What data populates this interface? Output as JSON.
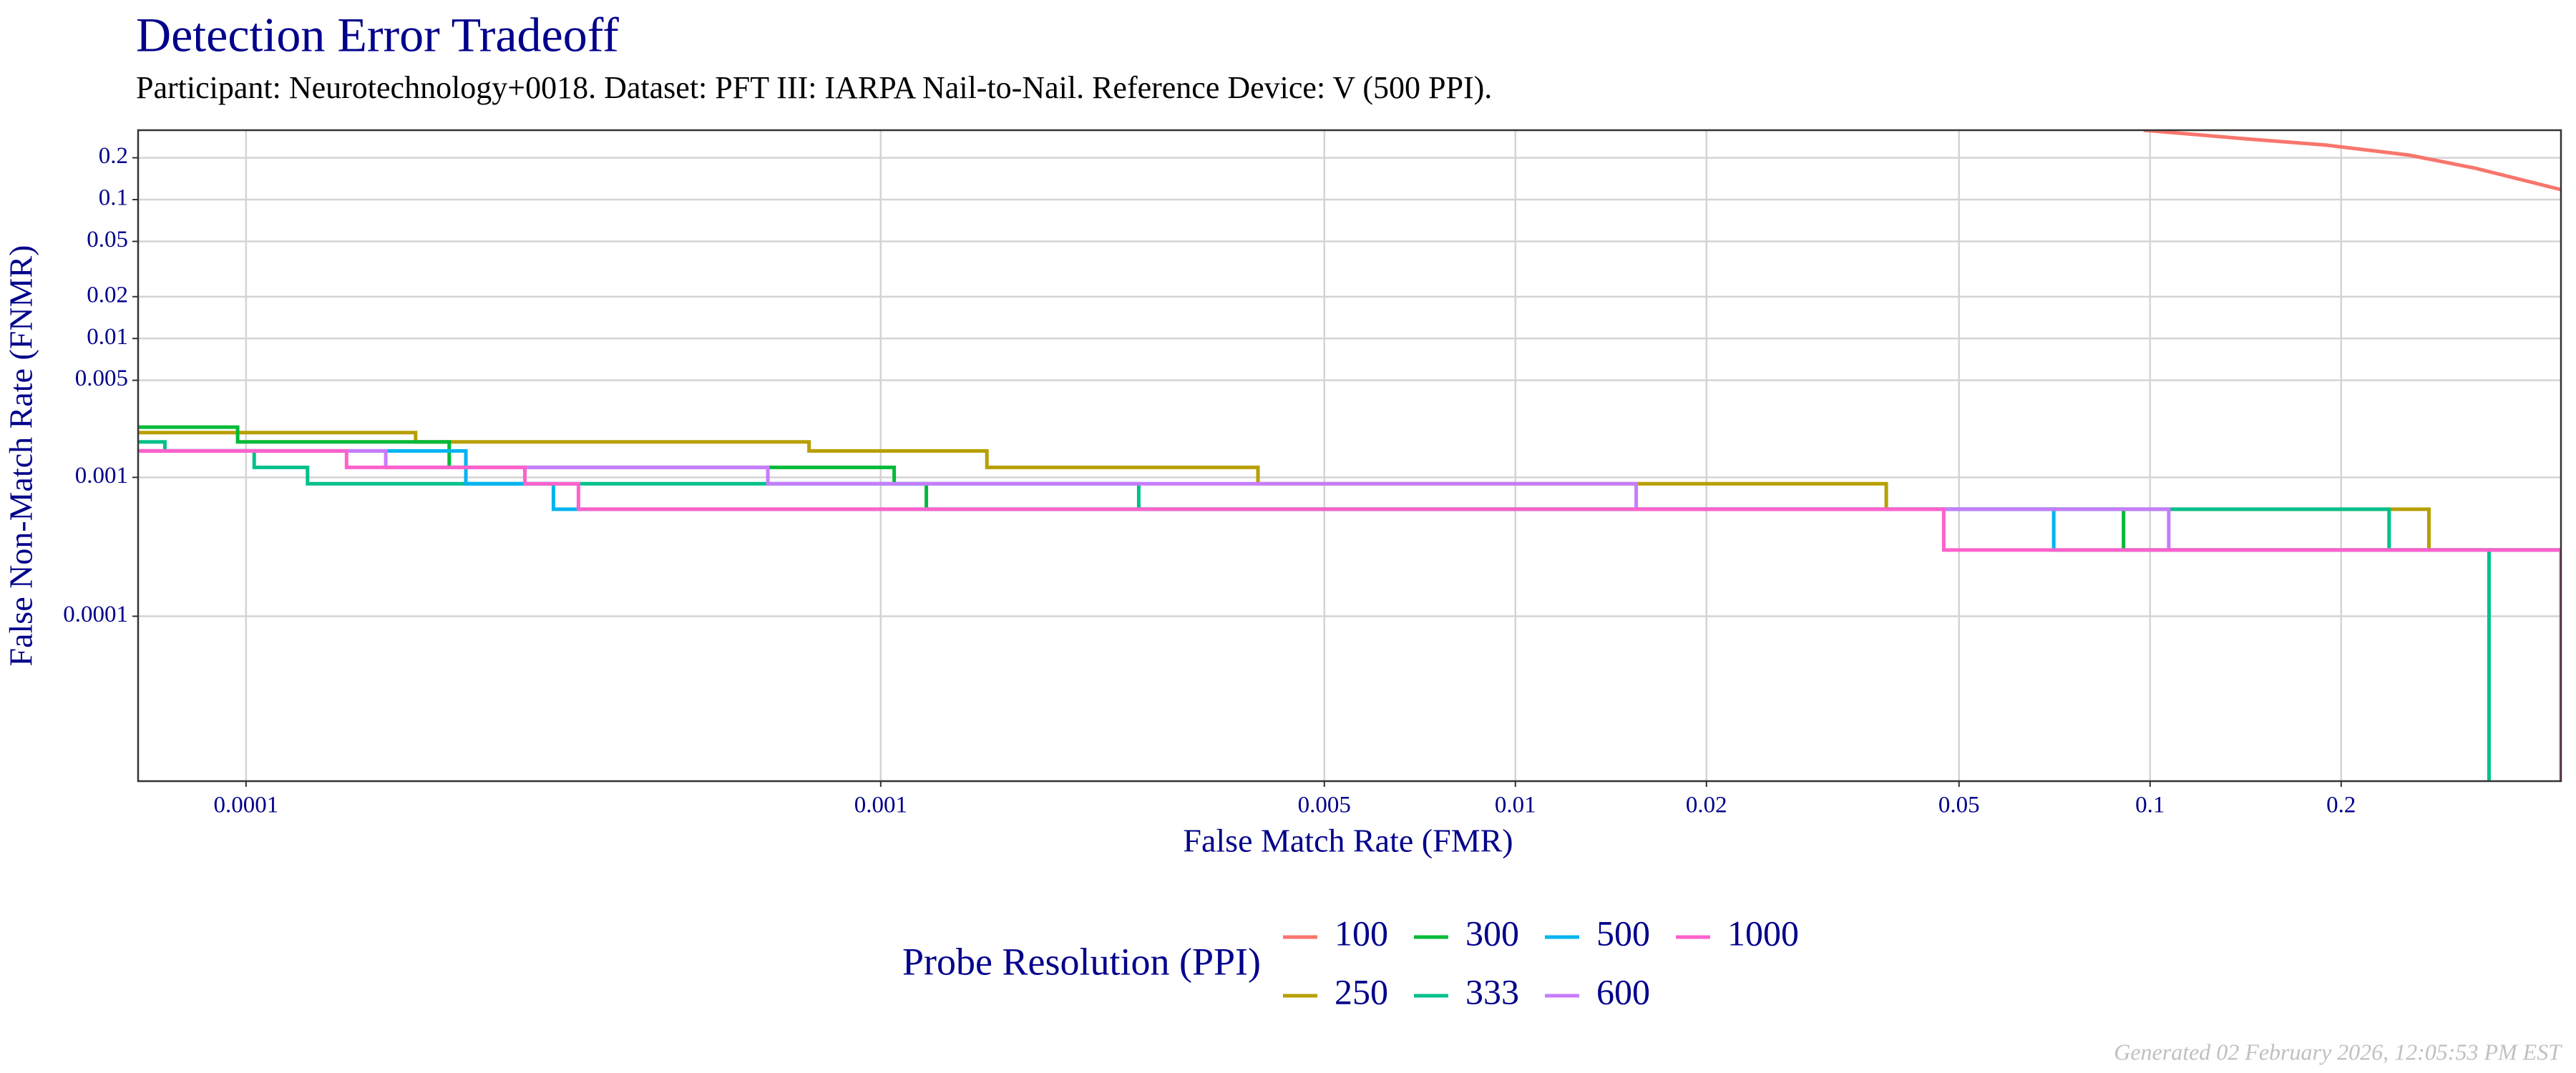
{
  "chart_data": {
    "type": "line",
    "step": true,
    "title": "Detection Error Tradeoff",
    "subtitle": "Participant: Neurotechnology+0018. Dataset: PFT III: IARPA Nail-to-Nail. Reference Device: V (500 PPI).",
    "xlabel": "False Match Rate (FMR)",
    "ylabel": "False Non-Match Rate (FNMR)",
    "xscale": "log",
    "yscale": "log",
    "grid": true,
    "xlim": [
      6.76e-05,
      0.444
    ],
    "ylim": [
      6.5e-06,
      0.316
    ],
    "xticks": [
      0.0001,
      0.001,
      0.005,
      0.01,
      0.02,
      0.05,
      0.1,
      0.2
    ],
    "yticks": [
      0.2,
      0.1,
      0.05,
      0.02,
      0.01,
      0.005,
      0.001,
      0.0001
    ],
    "legend_title": "Probe Resolution (PPI)",
    "legend_position": "bottom",
    "footer": "Generated 02 February 2026, 12:05:53 PM EST",
    "series": [
      {
        "name": "100",
        "color": "#F8766D",
        "step": false,
        "x": [
          0.0977,
          0.14,
          0.189,
          0.256,
          0.326,
          0.444
        ],
        "values": [
          0.316,
          0.275,
          0.247,
          0.209,
          0.168,
          0.118
        ]
      },
      {
        "name": "250",
        "color": "#B79F00",
        "x": [
          6.76e-05,
          0.000185,
          0.000771,
          0.00147,
          0.00393,
          0.0384,
          0.275,
          0.444
        ],
        "values": [
          0.0021,
          0.0018,
          0.00155,
          0.00118,
          0.0009,
          0.00059,
          0.0003,
          0.0003
        ]
      },
      {
        "name": "300",
        "color": "#00BA38",
        "x": [
          6.76e-05,
          9.7e-05,
          0.000209,
          0.00105,
          0.00118,
          0.0908,
          0.444
        ],
        "values": [
          0.0023,
          0.0018,
          0.00118,
          0.0009,
          0.00059,
          0.0003,
          0.0003
        ]
      },
      {
        "name": "333",
        "color": "#00C08B",
        "x": [
          6.76e-05,
          7.45e-05,
          0.000103,
          0.000125,
          0.00255,
          0.238,
          0.342
        ],
        "values": [
          0.0018,
          0.00155,
          0.00118,
          0.0009,
          0.00059,
          0.0003,
          6.5e-06
        ]
      },
      {
        "name": "500",
        "color": "#00B4F0",
        "x": [
          6.76e-05,
          0.000222,
          0.000305,
          0.0705,
          0.444
        ],
        "values": [
          0.00155,
          0.0009,
          0.00059,
          0.0003,
          0.0003
        ]
      },
      {
        "name": "600",
        "color": "#C77CFF",
        "x": [
          6.76e-05,
          0.000166,
          0.000664,
          0.0155,
          0.107,
          0.444
        ],
        "values": [
          0.00155,
          0.00118,
          0.0009,
          0.00059,
          0.0003,
          0.0003
        ]
      },
      {
        "name": "1000",
        "color": "#FF61CC",
        "x": [
          6.76e-05,
          0.000144,
          0.000275,
          0.000334,
          0.0473,
          0.444,
          0.444
        ],
        "values": [
          0.00155,
          0.00118,
          0.0009,
          0.00059,
          0.0003,
          0.0003,
          6.5e-06
        ]
      }
    ]
  }
}
